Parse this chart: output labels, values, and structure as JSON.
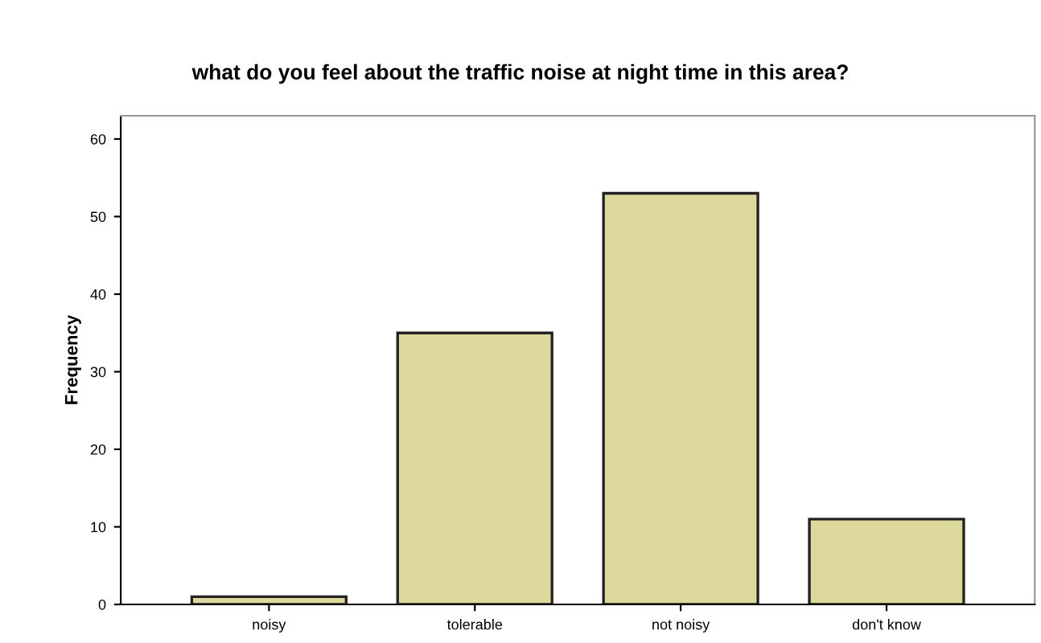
{
  "chart_data": {
    "type": "bar",
    "title": "what do you feel about the traffic noise at night time in this area?",
    "ylabel": "Frequency",
    "categories": [
      "noisy",
      "tolerable",
      "not noisy",
      "don't know"
    ],
    "values": [
      1,
      35,
      53,
      11
    ],
    "color": "#ddd89c",
    "ylim": [
      0,
      63
    ],
    "yticks": [
      0,
      10,
      20,
      30,
      40,
      50,
      60
    ],
    "grid": false,
    "legend": false
  }
}
